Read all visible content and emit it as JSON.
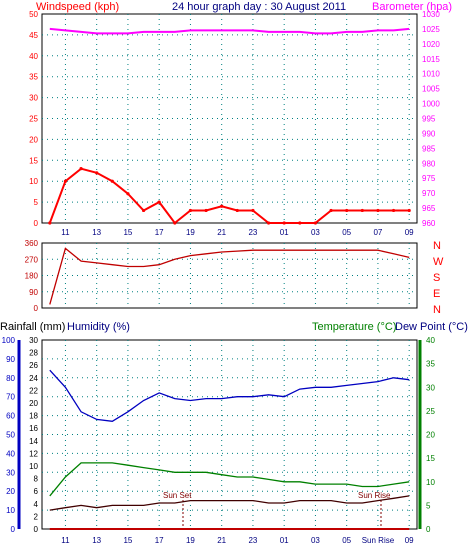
{
  "header": {
    "wind_title": "Windspeed (kph)",
    "date_title": "24 hour graph day : 30 August 2011",
    "baro_title": "Barometer (hpa)",
    "rain_title": "Rainfall (mm)",
    "humidity_title": "Humidity (%)",
    "temp_title": "Temperature (°C)",
    "dew_title": "Dew Point (°C)"
  },
  "colors": {
    "wind": "#ff0000",
    "wind_avg": "#0000ff",
    "rain_bar": "#008000",
    "baro": "#ff00ff",
    "direction": "#c00000",
    "humidity": "#0000c0",
    "temperature": "#008000",
    "dewpoint": "#400000",
    "rain_axis": "#0000c0",
    "grid": "#008080",
    "axis_text": "#000080",
    "sun_marker": "#800000"
  },
  "x_ticks": [
    "11",
    "13",
    "15",
    "17",
    "19",
    "21",
    "23",
    "01",
    "03",
    "05",
    "07",
    "09"
  ],
  "bottom_x_ticks": [
    "11",
    "13",
    "15",
    "17",
    "19",
    "21",
    "23",
    "01",
    "03",
    "05",
    "Sun Rise",
    "09"
  ],
  "compass": [
    "N",
    "W",
    "S",
    "E",
    "N"
  ],
  "sun_labels": {
    "sunset": "Sun Set",
    "sunrise": "Sun Rise"
  },
  "chart_data": [
    {
      "type": "line",
      "title": "24 hour graph day : 30 August 2011",
      "ylabel": "Windspeed (kph)",
      "y2label": "Barometer (hpa)",
      "x": [
        "10",
        "11",
        "12",
        "13",
        "14",
        "15",
        "16",
        "17",
        "18",
        "19",
        "20",
        "21",
        "22",
        "23",
        "00",
        "01",
        "02",
        "03",
        "04",
        "05",
        "06",
        "07",
        "08",
        "09"
      ],
      "ylim": [
        0,
        50
      ],
      "y_ticks": [
        0,
        5,
        10,
        15,
        20,
        25,
        30,
        35,
        40,
        45,
        50
      ],
      "y2lim": [
        960,
        1030
      ],
      "y2_ticks": [
        960,
        965,
        970,
        975,
        980,
        985,
        990,
        995,
        1000,
        1005,
        1010,
        1015,
        1020,
        1025,
        1030
      ],
      "series": [
        {
          "name": "Windspeed (kph)",
          "values": [
            0,
            10,
            13,
            12,
            10,
            7,
            3,
            5,
            0,
            3,
            3,
            4,
            3,
            3,
            0,
            0,
            0,
            0,
            3,
            3,
            3,
            3,
            3,
            3
          ]
        },
        {
          "name": "Barometer (hpa)",
          "values": [
            1025,
            1024.5,
            1024,
            1023.5,
            1023.5,
            1023.5,
            1024,
            1024,
            1024,
            1024.5,
            1024.5,
            1024.5,
            1024.5,
            1024.5,
            1024,
            1024,
            1024,
            1023.5,
            1023.5,
            1024,
            1024,
            1024.5,
            1024.5,
            1025
          ]
        }
      ]
    },
    {
      "type": "line",
      "ylabel": "Wind direction",
      "x": [
        "10",
        "11",
        "12",
        "13",
        "14",
        "15",
        "16",
        "17",
        "18",
        "19",
        "20",
        "21",
        "22",
        "23",
        "00",
        "01",
        "02",
        "03",
        "04",
        "05",
        "06",
        "07",
        "08",
        "09"
      ],
      "ylim": [
        0,
        360
      ],
      "y_ticks": [
        0,
        90,
        180,
        270,
        360
      ],
      "series": [
        {
          "name": "Wind direction",
          "values": [
            20,
            330,
            260,
            250,
            240,
            230,
            230,
            240,
            270,
            290,
            300,
            310,
            315,
            320,
            320,
            320,
            320,
            320,
            320,
            320,
            320,
            320,
            300,
            280
          ]
        }
      ]
    },
    {
      "type": "line",
      "x": [
        "10",
        "11",
        "12",
        "13",
        "14",
        "15",
        "16",
        "17",
        "18",
        "19",
        "20",
        "21",
        "22",
        "23",
        "00",
        "01",
        "02",
        "03",
        "04",
        "05",
        "06",
        "07",
        "08",
        "09"
      ],
      "series": [
        {
          "name": "Humidity (%)",
          "values": [
            84,
            75,
            62,
            58,
            57,
            62,
            68,
            72,
            69,
            68,
            69,
            69,
            70,
            70,
            71,
            70,
            74,
            75,
            75,
            76,
            77,
            78,
            80,
            79
          ]
        },
        {
          "name": "Temperature (°C)",
          "values": [
            7,
            11,
            14,
            14,
            14,
            13.5,
            13,
            12.5,
            12,
            12,
            12,
            11.5,
            11,
            11,
            10.5,
            10,
            10,
            9.5,
            9.5,
            9.5,
            9,
            9,
            9.5,
            10
          ]
        },
        {
          "name": "Dew Point (°C)",
          "values": [
            4,
            4.5,
            5,
            4.5,
            5,
            5,
            5,
            5.5,
            5.5,
            6,
            6,
            6,
            6,
            6,
            5.5,
            5.5,
            6,
            6,
            6,
            5.5,
            5.5,
            6,
            6.5,
            7
          ]
        },
        {
          "name": "Rainfall (mm)",
          "values": [
            0,
            0,
            0,
            0,
            0,
            0,
            0,
            0,
            0,
            0,
            0,
            0,
            0,
            0,
            0,
            0,
            0,
            0,
            0,
            0,
            0,
            0,
            0,
            0
          ]
        }
      ],
      "humidity_ylim": [
        0,
        100
      ],
      "humidity_ticks": [
        0,
        10,
        20,
        30,
        40,
        50,
        60,
        70,
        80,
        90,
        100
      ],
      "rain_ylim": [
        0,
        30
      ],
      "rain_ticks": [
        0,
        2,
        4,
        6,
        8,
        10,
        12,
        14,
        16,
        18,
        20,
        22,
        24,
        26,
        28,
        30
      ],
      "temp_ylim": [
        0,
        40
      ],
      "temp_ticks": [
        0,
        5,
        10,
        15,
        20,
        25,
        30,
        35,
        40
      ]
    }
  ]
}
